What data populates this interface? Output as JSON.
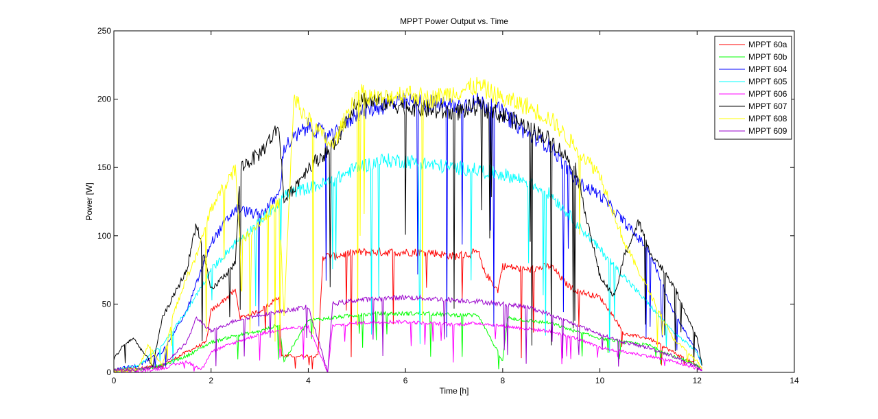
{
  "chart_data": {
    "type": "line",
    "title": "MPPT Power Output vs. Time",
    "xlabel": "Time [h]",
    "ylabel": "Power [W]",
    "xlim": [
      0,
      14
    ],
    "ylim": [
      0,
      250
    ],
    "xticks": [
      0,
      2,
      4,
      6,
      8,
      10,
      12,
      14
    ],
    "yticks": [
      0,
      50,
      100,
      150,
      200,
      250
    ],
    "grid": false,
    "legend_position": "top-right",
    "series": [
      {
        "name": "MPPT 60a",
        "color": "#ff0000",
        "x": [
          0.0,
          0.5,
          1.0,
          1.5,
          1.9,
          2.0,
          2.5,
          2.6,
          3.0,
          3.4,
          3.45,
          4.1,
          4.2,
          4.3,
          4.5,
          5.0,
          5.5,
          6.0,
          6.5,
          7.0,
          7.5,
          7.6,
          7.9,
          8.0,
          8.5,
          9.0,
          9.3,
          9.5,
          10.0,
          10.3,
          10.5,
          11.0,
          11.5,
          12.0,
          12.1
        ],
        "values": [
          2,
          3,
          5,
          15,
          22,
          45,
          60,
          40,
          45,
          55,
          12,
          12,
          12,
          85,
          85,
          88,
          88,
          88,
          88,
          85,
          88,
          75,
          60,
          78,
          75,
          78,
          65,
          60,
          55,
          40,
          28,
          25,
          15,
          5,
          3
        ]
      },
      {
        "name": "MPPT 60b",
        "color": "#00ff00",
        "x": [
          0.0,
          0.5,
          1.0,
          1.5,
          2.0,
          2.5,
          3.0,
          3.4,
          3.5,
          4.0,
          4.5,
          5.0,
          5.5,
          6.0,
          6.5,
          7.0,
          7.5,
          8.0,
          8.1,
          8.5,
          9.0,
          9.5,
          10.0,
          10.5,
          11.0,
          11.5,
          12.0,
          12.1
        ],
        "values": [
          1,
          2,
          5,
          12,
          22,
          27,
          30,
          35,
          8,
          38,
          40,
          42,
          43,
          43,
          43,
          42,
          42,
          8,
          40,
          38,
          36,
          30,
          25,
          22,
          20,
          12,
          5,
          2
        ]
      },
      {
        "name": "MPPT 604",
        "color": "#0000ff",
        "x": [
          0.0,
          0.5,
          1.0,
          1.5,
          2.0,
          2.5,
          3.0,
          3.4,
          3.5,
          4.0,
          4.5,
          5.0,
          5.5,
          6.0,
          6.5,
          7.0,
          7.5,
          8.0,
          8.5,
          9.0,
          9.5,
          10.0,
          10.5,
          11.0,
          11.5,
          12.0,
          12.1
        ],
        "values": [
          2,
          5,
          15,
          45,
          95,
          120,
          115,
          130,
          165,
          180,
          172,
          190,
          195,
          198,
          197,
          195,
          198,
          190,
          175,
          165,
          140,
          130,
          110,
          90,
          45,
          15,
          5
        ]
      },
      {
        "name": "MPPT 605",
        "color": "#00ffff",
        "x": [
          0.0,
          0.5,
          1.0,
          1.5,
          2.0,
          2.5,
          3.0,
          3.4,
          3.5,
          4.0,
          4.5,
          5.0,
          5.5,
          6.0,
          6.5,
          7.0,
          7.5,
          8.0,
          8.5,
          9.0,
          9.5,
          10.0,
          10.5,
          11.0,
          11.5,
          12.0,
          12.1
        ],
        "values": [
          1,
          5,
          20,
          45,
          75,
          95,
          110,
          125,
          130,
          135,
          140,
          150,
          155,
          155,
          152,
          150,
          148,
          145,
          140,
          130,
          110,
          90,
          70,
          50,
          30,
          15,
          5
        ]
      },
      {
        "name": "MPPT 606",
        "color": "#ff00ff",
        "x": [
          0.0,
          0.5,
          1.0,
          1.5,
          1.8,
          2.0,
          2.5,
          3.0,
          3.5,
          4.0,
          4.4,
          4.5,
          5.0,
          5.5,
          6.0,
          6.5,
          7.0,
          7.5,
          8.0,
          8.5,
          9.0,
          9.5,
          10.0,
          10.5,
          11.0,
          11.5,
          12.0,
          12.1
        ],
        "values": [
          1,
          1,
          3,
          8,
          2,
          15,
          22,
          28,
          32,
          33,
          0,
          34,
          36,
          37,
          37,
          36,
          35,
          36,
          34,
          32,
          30,
          25,
          18,
          15,
          12,
          8,
          3,
          1
        ]
      },
      {
        "name": "MPPT 607",
        "color": "#000000",
        "x": [
          0.0,
          0.2,
          0.4,
          0.8,
          1.0,
          1.5,
          1.7,
          2.0,
          2.5,
          2.6,
          3.0,
          3.4,
          3.5,
          4.0,
          4.5,
          5.0,
          5.5,
          6.0,
          6.5,
          7.0,
          7.5,
          8.0,
          8.5,
          9.0,
          9.5,
          10.0,
          10.3,
          10.5,
          10.8,
          11.0,
          11.5,
          12.0,
          12.1
        ],
        "values": [
          10,
          20,
          25,
          5,
          40,
          75,
          110,
          60,
          80,
          150,
          160,
          180,
          125,
          150,
          165,
          200,
          198,
          195,
          192,
          190,
          195,
          188,
          180,
          170,
          150,
          70,
          55,
          85,
          110,
          90,
          65,
          25,
          5
        ]
      },
      {
        "name": "MPPT 608",
        "color": "#ffff00",
        "x": [
          0.0,
          0.5,
          0.7,
          1.0,
          1.2,
          1.5,
          1.7,
          2.0,
          2.5,
          2.6,
          3.0,
          3.4,
          3.5,
          3.7,
          4.0,
          4.5,
          5.0,
          5.5,
          6.0,
          6.5,
          7.0,
          7.5,
          8.0,
          8.5,
          9.0,
          9.5,
          10.0,
          10.5,
          11.0,
          11.5,
          12.0,
          12.1
        ],
        "values": [
          1,
          2,
          20,
          5,
          40,
          70,
          85,
          120,
          150,
          95,
          110,
          125,
          40,
          200,
          185,
          165,
          205,
          200,
          205,
          200,
          205,
          210,
          200,
          195,
          185,
          165,
          145,
          95,
          60,
          25,
          8,
          2
        ]
      },
      {
        "name": "MPPT 609",
        "color": "#9900cc",
        "x": [
          0.0,
          0.5,
          1.0,
          1.5,
          1.7,
          2.0,
          2.5,
          3.0,
          3.5,
          4.0,
          4.4,
          4.5,
          5.0,
          5.5,
          6.0,
          6.5,
          7.0,
          7.5,
          8.0,
          8.5,
          9.0,
          9.5,
          10.0,
          10.5,
          11.0,
          11.5,
          12.0,
          12.1
        ],
        "values": [
          2,
          2,
          5,
          22,
          40,
          30,
          38,
          42,
          45,
          48,
          0,
          50,
          53,
          54,
          55,
          54,
          53,
          52,
          50,
          48,
          42,
          35,
          28,
          22,
          18,
          12,
          4,
          1
        ]
      }
    ]
  }
}
